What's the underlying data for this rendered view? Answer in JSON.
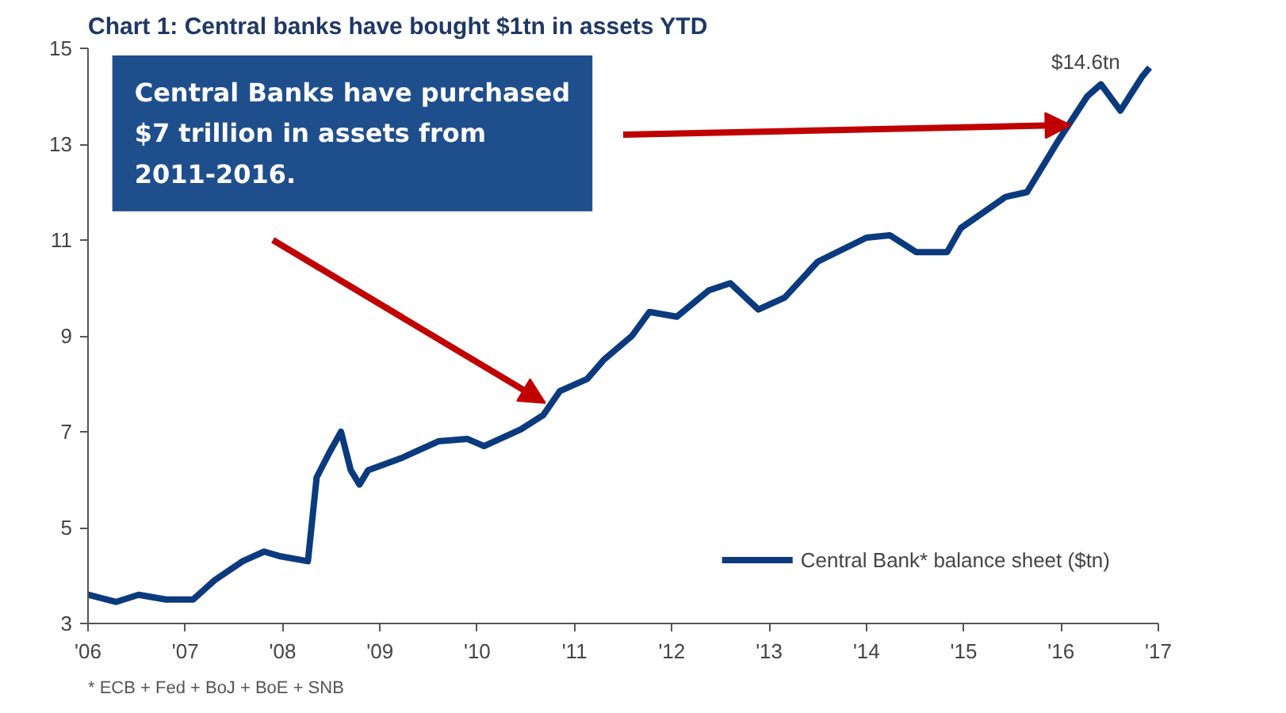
{
  "chart_data": {
    "type": "line",
    "title": "Chart 1:  Central banks have bought $1tn in assets YTD",
    "annotations": [
      "Central Banks have purchased $7 trillion in assets from 2011-2016.",
      {
        "text": "$14.6tn",
        "x": 2016.91,
        "y": 14.6
      },
      "* ECB + Fed + BoJ + BoE + SNB"
    ],
    "series": [
      {
        "name": "Central Bank* balance sheet ($tn)",
        "color": "#0b3a7e",
        "x": [
          2006.0,
          2006.29,
          2006.52,
          2006.8,
          2007.08,
          2007.3,
          2007.59,
          2007.81,
          2007.98,
          2008.26,
          2008.35,
          2008.49,
          2008.6,
          2008.7,
          2008.79,
          2008.88,
          2009.22,
          2009.6,
          2009.9,
          2010.07,
          2010.45,
          2010.68,
          2010.85,
          2011.13,
          2011.3,
          2011.59,
          2011.77,
          2012.05,
          2012.38,
          2012.6,
          2012.89,
          2013.16,
          2013.5,
          2014.0,
          2014.24,
          2014.51,
          2014.83,
          2014.97,
          2015.43,
          2015.65,
          2015.98,
          2016.27,
          2016.41,
          2016.61,
          2016.83,
          2016.91
        ],
        "values": [
          3.6,
          3.45,
          3.6,
          3.5,
          3.5,
          3.9,
          4.3,
          4.5,
          4.4,
          4.3,
          6.05,
          6.6,
          7.0,
          6.2,
          5.9,
          6.2,
          6.45,
          6.8,
          6.85,
          6.7,
          7.05,
          7.35,
          7.85,
          8.1,
          8.5,
          9.0,
          9.5,
          9.4,
          9.95,
          10.1,
          9.55,
          9.8,
          10.55,
          11.05,
          11.1,
          10.75,
          10.75,
          11.25,
          11.9,
          12.0,
          13.1,
          14.0,
          14.25,
          13.7,
          14.4,
          14.6
        ]
      }
    ],
    "xlim": [
      2006,
      2017
    ],
    "xticks": [
      {
        "value": 2006,
        "label": "'06"
      },
      {
        "value": 2007,
        "label": "'07"
      },
      {
        "value": 2008,
        "label": "'08"
      },
      {
        "value": 2009,
        "label": "'09"
      },
      {
        "value": 2010,
        "label": "'10"
      },
      {
        "value": 2011,
        "label": "'11"
      },
      {
        "value": 2012,
        "label": "'12"
      },
      {
        "value": 2013,
        "label": "'13"
      },
      {
        "value": 2014,
        "label": "'14"
      },
      {
        "value": 2015,
        "label": "'15"
      },
      {
        "value": 2016,
        "label": "'16"
      },
      {
        "value": 2017,
        "label": "'17"
      }
    ],
    "ylim": [
      3,
      15
    ],
    "yticks": [
      3,
      5,
      7,
      9,
      11,
      13,
      15
    ],
    "grid": false,
    "legend": "bottom right",
    "marker": "none",
    "line_style": "solid"
  }
}
